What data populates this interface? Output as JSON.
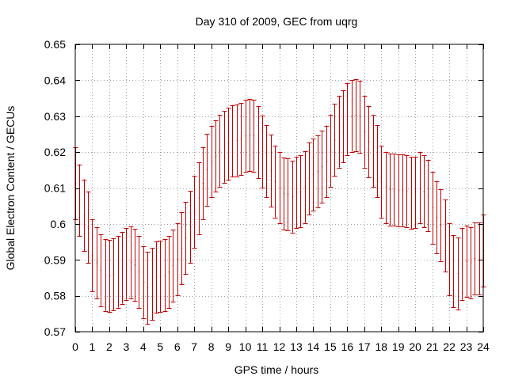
{
  "chart_data": {
    "type": "scatter",
    "title": "Day 310 of 2009, GEC from uqrg",
    "xlabel": "GPS time / hours",
    "ylabel": "Global Electron Content / GECUs",
    "xlim": [
      0,
      24
    ],
    "ylim": [
      0.57,
      0.65
    ],
    "xticks": [
      0,
      1,
      2,
      3,
      4,
      5,
      6,
      7,
      8,
      9,
      10,
      11,
      12,
      13,
      14,
      15,
      16,
      17,
      18,
      19,
      20,
      21,
      22,
      23,
      24
    ],
    "xtick_labels": [
      "0",
      "1",
      "2",
      "3",
      "4",
      "5",
      "6",
      "7",
      "8",
      "9",
      "10",
      "11",
      "12",
      "13",
      "14",
      "15",
      "16",
      "17",
      "18",
      "19",
      "20",
      "21",
      "22",
      "23",
      "24"
    ],
    "yticks": [
      0.57,
      0.58,
      0.59,
      0.6,
      0.61,
      0.62,
      0.63,
      0.64,
      0.65
    ],
    "ytick_labels": [
      "0.57",
      "0.58",
      "0.59",
      "0.6",
      "0.61",
      "0.62",
      "0.63",
      "0.64",
      "0.65"
    ],
    "grid": true,
    "error_color": "#c00000",
    "error_half_width": 0.01,
    "series": [
      {
        "name": "GEC",
        "x": [
          0,
          0.25,
          0.5,
          0.75,
          1,
          1.25,
          1.5,
          1.75,
          2,
          2.25,
          2.5,
          2.75,
          3,
          3.25,
          3.5,
          3.75,
          4,
          4.25,
          4.5,
          4.75,
          5,
          5.25,
          5.5,
          5.75,
          6,
          6.25,
          6.5,
          6.75,
          7,
          7.25,
          7.5,
          7.75,
          8,
          8.25,
          8.5,
          8.75,
          9,
          9.25,
          9.5,
          9.75,
          10,
          10.25,
          10.5,
          10.75,
          11,
          11.25,
          11.5,
          11.75,
          12,
          12.25,
          12.5,
          12.75,
          13,
          13.25,
          13.5,
          13.75,
          14,
          14.25,
          14.5,
          14.75,
          15,
          15.25,
          15.5,
          15.75,
          16,
          16.25,
          16.5,
          16.75,
          17,
          17.25,
          17.5,
          17.75,
          18,
          18.25,
          18.5,
          18.75,
          19,
          19.25,
          19.5,
          19.75,
          20,
          20.25,
          20.5,
          20.75,
          21,
          21.25,
          21.5,
          21.75,
          22,
          22.25,
          22.5,
          22.75,
          23,
          23.25,
          23.5,
          23.75,
          24
        ],
        "y": [
          0.6113,
          0.6066,
          0.6024,
          0.5991,
          0.5912,
          0.5892,
          0.5871,
          0.5858,
          0.5855,
          0.5859,
          0.5867,
          0.5878,
          0.5889,
          0.5893,
          0.5886,
          0.5866,
          0.5838,
          0.5822,
          0.5833,
          0.5852,
          0.5854,
          0.5857,
          0.5866,
          0.5884,
          0.5902,
          0.5932,
          0.5961,
          0.5992,
          0.6034,
          0.6072,
          0.6113,
          0.6151,
          0.6174,
          0.6189,
          0.6203,
          0.6215,
          0.6223,
          0.6231,
          0.6233,
          0.6236,
          0.6245,
          0.6247,
          0.6246,
          0.6227,
          0.6202,
          0.6175,
          0.6148,
          0.6118,
          0.6101,
          0.6084,
          0.6083,
          0.6076,
          0.6088,
          0.6091,
          0.6103,
          0.6126,
          0.6137,
          0.6146,
          0.6159,
          0.6174,
          0.6203,
          0.6234,
          0.6257,
          0.6272,
          0.6292,
          0.6301,
          0.6303,
          0.6299,
          0.6257,
          0.6229,
          0.6203,
          0.6175,
          0.6118,
          0.6101,
          0.6096,
          0.6095,
          0.6094,
          0.6094,
          0.6092,
          0.6086,
          0.6088,
          0.6101,
          0.6091,
          0.6079,
          0.6045,
          0.6018,
          0.5997,
          0.5967,
          0.5902,
          0.5868,
          0.5862,
          0.5889,
          0.5896,
          0.5892,
          0.5904,
          0.5904,
          0.5926
        ]
      }
    ]
  }
}
